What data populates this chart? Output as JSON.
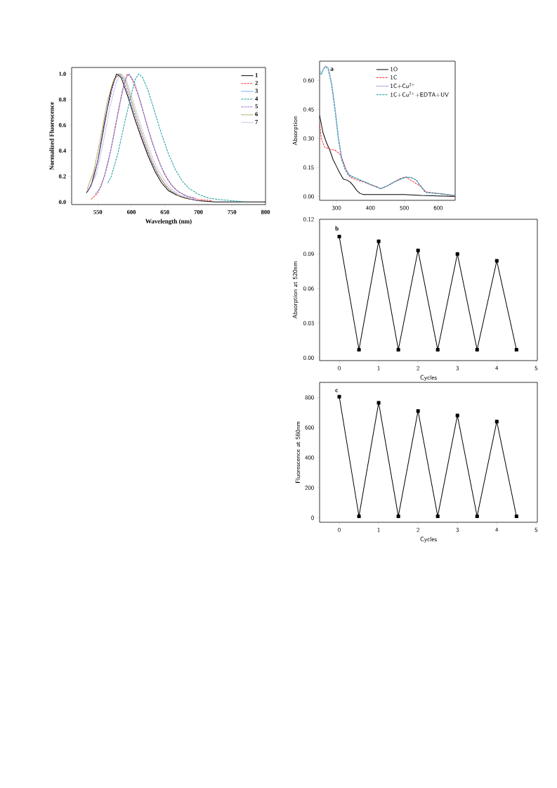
{
  "chart_data": [
    {
      "type": "line",
      "xlabel": "Wavelength (nm)",
      "ylabel": "Normalized Fluorescence",
      "xlim": [
        511,
        800
      ],
      "ylim": [
        -0.02,
        1.05
      ],
      "xticks": [
        550,
        600,
        650,
        700,
        750,
        800
      ],
      "yticks": [
        {
          "value": 0,
          "label": "0.0"
        },
        {
          "value": 0.2,
          "label": "0.2"
        },
        {
          "value": 0.4,
          "label": "0.4"
        },
        {
          "value": 0.6,
          "label": "0.6"
        },
        {
          "value": 0.8,
          "label": "0.8"
        },
        {
          "value": 1.0,
          "label": "1.0"
        }
      ],
      "legend": "top right",
      "marker": "none",
      "series": [
        {
          "name": "1",
          "color": "#000000",
          "line_style": "solid",
          "x": [
            533,
            540,
            550,
            560,
            570,
            578,
            585,
            595,
            605,
            615,
            625,
            635,
            645,
            655,
            665,
            680,
            700,
            725,
            750,
            800
          ],
          "values": [
            0.07,
            0.13,
            0.32,
            0.62,
            0.88,
            1.0,
            0.97,
            0.82,
            0.65,
            0.5,
            0.36,
            0.24,
            0.15,
            0.09,
            0.06,
            0.03,
            0.01,
            0,
            0,
            0
          ]
        },
        {
          "name": "2",
          "color": "#ff3333",
          "line_style": "dashed",
          "x": [
            540,
            550,
            560,
            570,
            580,
            588,
            594,
            600,
            610,
            620,
            630,
            640,
            650,
            660,
            670,
            685,
            700,
            720
          ],
          "values": [
            0.02,
            0.07,
            0.2,
            0.42,
            0.7,
            0.9,
            1.0,
            0.97,
            0.84,
            0.66,
            0.48,
            0.33,
            0.21,
            0.13,
            0.08,
            0.04,
            0.02,
            0.01
          ]
        },
        {
          "name": "3",
          "color": "#3377ff",
          "line_style": "dotted",
          "x": [
            546,
            555,
            565,
            575,
            585,
            592,
            597,
            605,
            615,
            625,
            635,
            645,
            655,
            665,
            680,
            695
          ],
          "values": [
            0.06,
            0.12,
            0.3,
            0.55,
            0.82,
            0.97,
            1.0,
            0.93,
            0.76,
            0.57,
            0.41,
            0.27,
            0.17,
            0.1,
            0.05,
            0.03
          ]
        },
        {
          "name": "4",
          "color": "#1a9e9e",
          "line_style": "dashed",
          "x": [
            565,
            570,
            580,
            590,
            600,
            606,
            611,
            617,
            625,
            635,
            645,
            655,
            665,
            675,
            685,
            700,
            715,
            730,
            750,
            770
          ],
          "values": [
            0.15,
            0.2,
            0.38,
            0.62,
            0.84,
            0.96,
            1.0,
            0.97,
            0.87,
            0.7,
            0.53,
            0.38,
            0.26,
            0.17,
            0.11,
            0.06,
            0.03,
            0.02,
            0.01,
            0
          ]
        },
        {
          "name": "5",
          "color": "#9966cc",
          "line_style": "dashed",
          "x": [
            535,
            545,
            555,
            565,
            575,
            581,
            588,
            598,
            608,
            618,
            628,
            638,
            648,
            658,
            670,
            685,
            700
          ],
          "values": [
            0.08,
            0.2,
            0.45,
            0.74,
            0.95,
            1.0,
            0.96,
            0.8,
            0.63,
            0.48,
            0.34,
            0.23,
            0.15,
            0.09,
            0.05,
            0.03,
            0.01
          ]
        },
        {
          "name": "6",
          "color": "#808000",
          "line_style": "dotted",
          "x": [
            534,
            544,
            554,
            564,
            574,
            583,
            591,
            601,
            611,
            621,
            631,
            641,
            651,
            661,
            673,
            688
          ],
          "values": [
            0.1,
            0.24,
            0.5,
            0.78,
            0.96,
            1.0,
            0.95,
            0.78,
            0.61,
            0.46,
            0.32,
            0.21,
            0.13,
            0.08,
            0.04,
            0.02
          ]
        },
        {
          "name": "7",
          "color": "#a0a0d8",
          "line_style": "dotted",
          "x": [
            538,
            548,
            558,
            568,
            578,
            585,
            592,
            602,
            612,
            622,
            632,
            642,
            652,
            662,
            674,
            690
          ],
          "values": [
            0.1,
            0.22,
            0.46,
            0.74,
            0.94,
            1.0,
            0.96,
            0.8,
            0.63,
            0.48,
            0.34,
            0.23,
            0.15,
            0.09,
            0.05,
            0.02
          ]
        }
      ]
    },
    {
      "type": "line",
      "ylabel": "Absorption",
      "annotations": [
        "a"
      ],
      "xlim": [
        250,
        650
      ],
      "ylim": [
        -0.02,
        0.7
      ],
      "xticks": [
        300,
        400,
        500,
        600
      ],
      "yticks": [
        {
          "value": 0,
          "label": "0.00"
        },
        {
          "value": 0.15,
          "label": "0.15"
        },
        {
          "value": 0.3,
          "label": "0.30"
        },
        {
          "value": 0.45,
          "label": "0.45"
        },
        {
          "value": 0.6,
          "label": "0.60"
        }
      ],
      "legend": "top right",
      "marker": "none",
      "series": [
        {
          "name": "1O",
          "color": "#000000",
          "line_style": "solid",
          "x": [
            250,
            260,
            270,
            280,
            290,
            300,
            310,
            320,
            330,
            340,
            350,
            360,
            370,
            380,
            400,
            450,
            500,
            550,
            600,
            650
          ],
          "values": [
            0.42,
            0.33,
            0.28,
            0.24,
            0.19,
            0.155,
            0.12,
            0.09,
            0.085,
            0.075,
            0.055,
            0.03,
            0.015,
            0.01,
            0.01,
            0.01,
            0.01,
            0.005,
            0.003,
            0.0
          ]
        },
        {
          "name": "1C",
          "color": "#ff3333",
          "line_style": "dashed",
          "x": [
            250,
            255,
            265,
            280,
            295,
            310,
            320,
            330,
            340,
            360,
            380,
            400,
            420,
            430,
            450,
            470,
            490,
            505,
            520,
            535,
            550,
            560,
            580,
            600,
            620,
            650
          ],
          "values": [
            0.38,
            0.3,
            0.255,
            0.245,
            0.24,
            0.22,
            0.18,
            0.13,
            0.1,
            0.085,
            0.075,
            0.06,
            0.05,
            0.04,
            0.055,
            0.075,
            0.095,
            0.1,
            null,
            null,
            0.05,
            0.025,
            0.02,
            0.015,
            0.012,
            0.0
          ]
        },
        {
          "name": "1C+Cu$^{2+}$",
          "color": "#6666cc",
          "line_style": "dotted",
          "x": [
            250,
            256,
            263,
            268,
            276,
            286,
            296,
            306,
            316,
            326,
            336,
            350,
            370,
            390,
            410,
            430,
            450,
            470,
            490,
            505,
            520,
            535,
            550,
            565,
            600,
            650
          ],
          "values": [
            0.65,
            0.64,
            0.665,
            0.675,
            0.665,
            0.585,
            0.455,
            0.305,
            0.195,
            0.145,
            0.115,
            0.1,
            0.085,
            0.07,
            0.055,
            0.04,
            0.055,
            0.075,
            0.09,
            0.1,
            0.098,
            0.085,
            0.05,
            0.02,
            0.015,
            0.005
          ]
        },
        {
          "name": "1C+Cu$^{2+}$+EDTA+UV",
          "color": "#1a9e9e",
          "line_style": "dashed",
          "x": [
            250,
            255,
            262,
            268,
            275,
            285,
            295,
            305,
            315,
            325,
            335,
            350,
            370,
            390,
            410,
            430,
            450,
            470,
            490,
            505,
            520,
            535,
            550,
            565,
            600,
            650
          ],
          "values": [
            0.64,
            0.63,
            0.66,
            0.67,
            0.66,
            0.58,
            0.45,
            0.3,
            0.19,
            0.14,
            0.11,
            0.1,
            0.085,
            0.07,
            0.055,
            0.04,
            0.055,
            0.075,
            0.09,
            0.1,
            0.098,
            0.085,
            0.05,
            0.02,
            0.015,
            0.005
          ]
        }
      ]
    },
    {
      "type": "line",
      "xlabel": "Cycles",
      "ylabel": "Absorption at 520nm",
      "annotations": [
        "b"
      ],
      "xlim": [
        -0.5,
        5.03
      ],
      "ylim": [
        -0.0025,
        0.12
      ],
      "xticks": [
        0,
        1,
        2,
        3,
        4,
        5
      ],
      "yticks": [
        {
          "value": 0,
          "label": "0.00"
        },
        {
          "value": 0.03,
          "label": "0.03"
        },
        {
          "value": 0.06,
          "label": "0.06"
        },
        {
          "value": 0.09,
          "label": "0.09"
        },
        {
          "value": 0.12,
          "label": "0.12"
        }
      ],
      "marker": "square",
      "line_style": "solid",
      "x": [
        0,
        0.5,
        1,
        1.5,
        2,
        2.5,
        3,
        3.5,
        4,
        4.5
      ],
      "series": [
        {
          "color": "#000000",
          "values": [
            0.105,
            0.007,
            0.101,
            0.007,
            0.093,
            0.007,
            0.09,
            0.007,
            0.084,
            0.007
          ]
        }
      ]
    },
    {
      "type": "line",
      "xlabel": "Cycles",
      "ylabel": "Fluorescence at 580nm",
      "annotations": [
        "c"
      ],
      "xlim": [
        -0.5,
        5.03
      ],
      "ylim": [
        -30,
        900
      ],
      "xticks": [
        0,
        1,
        2,
        3,
        4,
        5
      ],
      "yticks": [
        0,
        200,
        400,
        600,
        800
      ],
      "marker": "square",
      "line_style": "solid",
      "x": [
        0,
        0.5,
        1,
        1.5,
        2,
        2.5,
        3,
        3.5,
        4,
        4.5
      ],
      "series": [
        {
          "color": "#000000",
          "values": [
            805,
            10,
            765,
            10,
            710,
            10,
            680,
            10,
            640,
            10
          ]
        }
      ]
    }
  ]
}
